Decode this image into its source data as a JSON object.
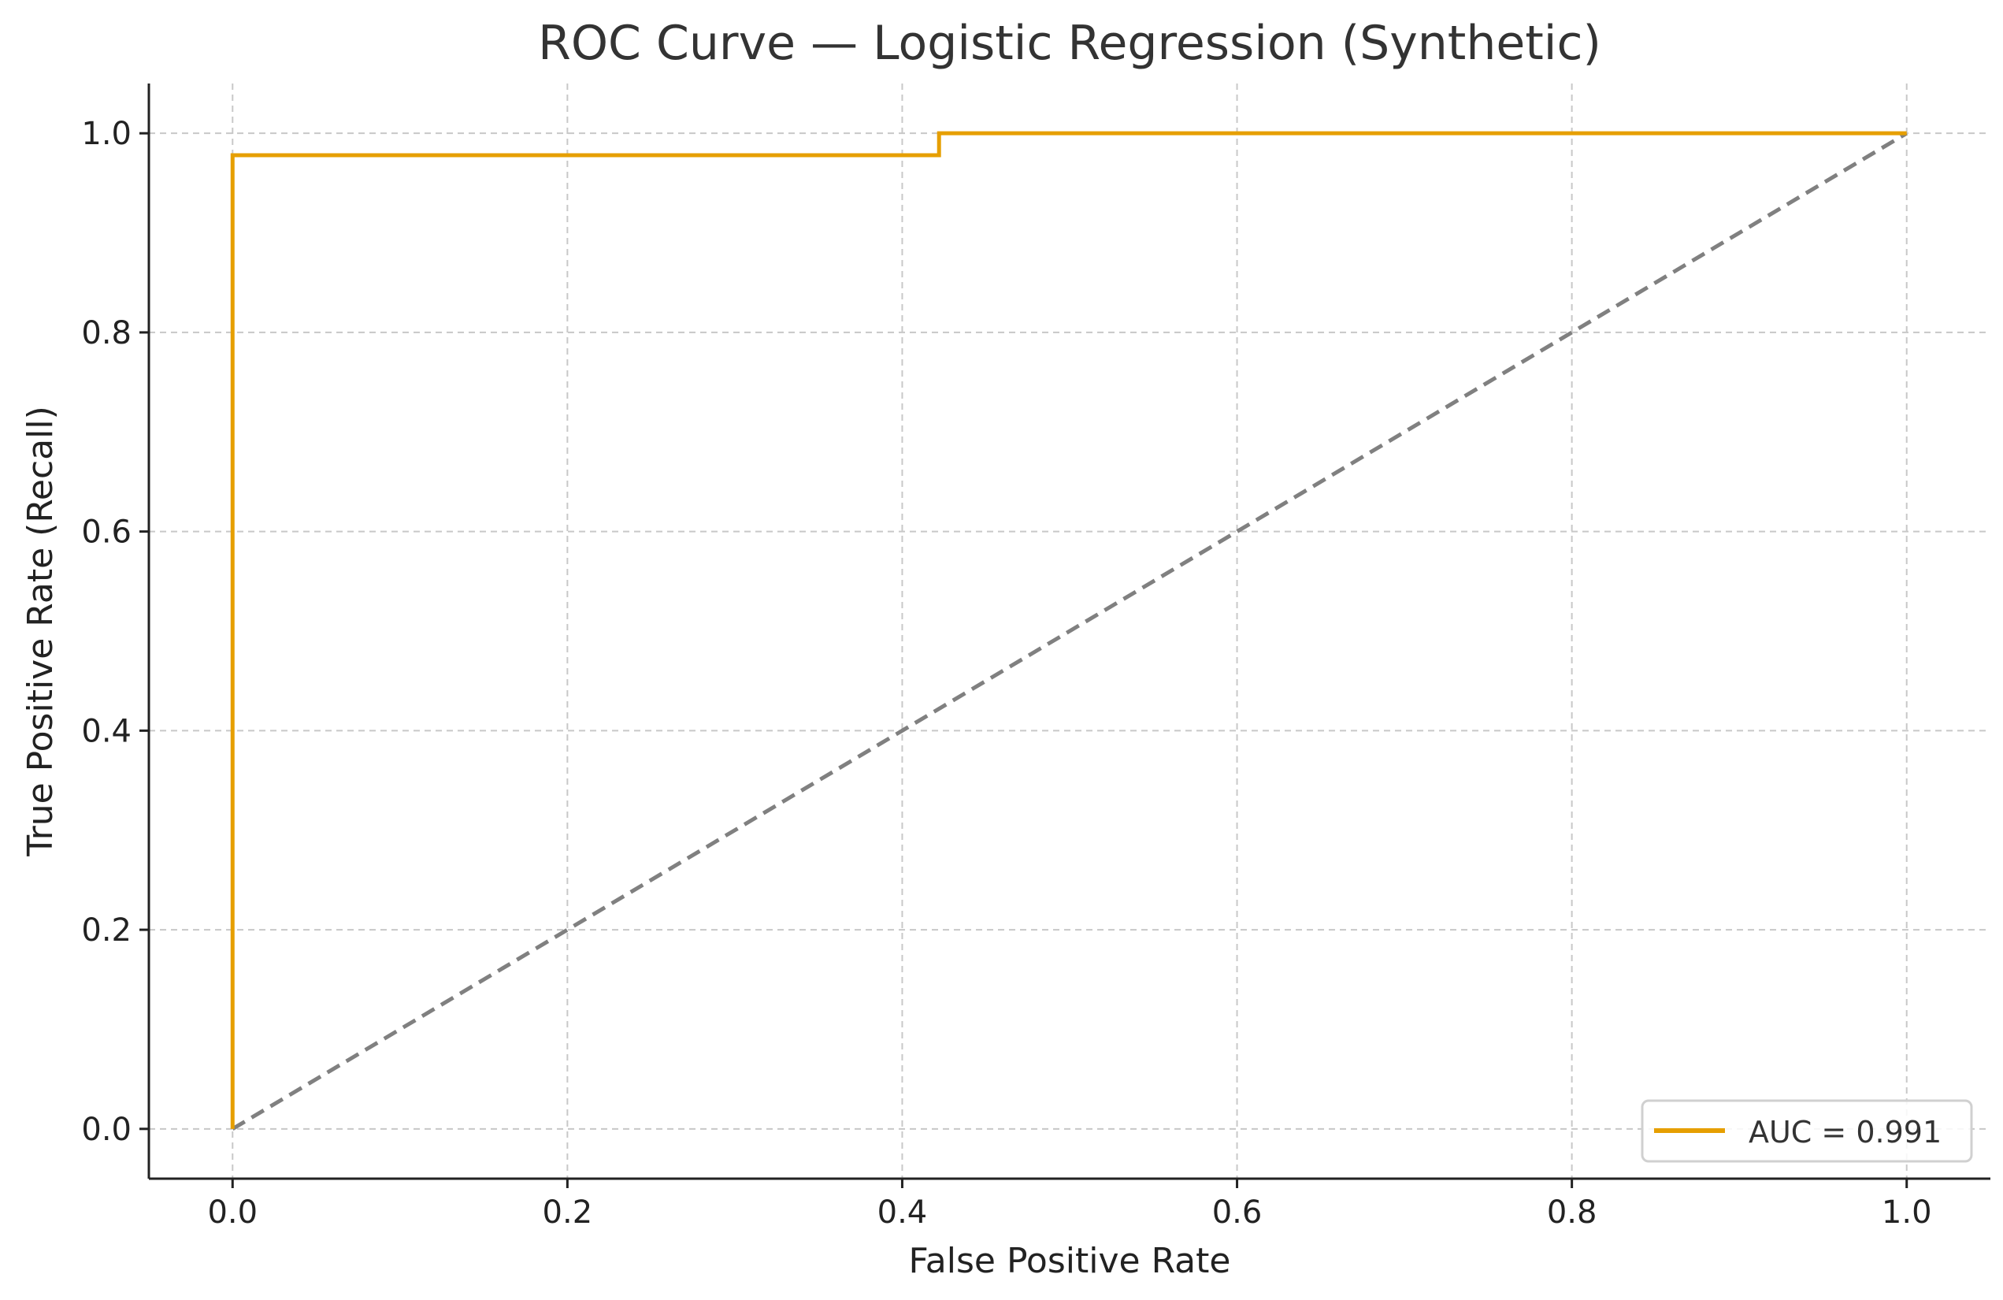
{
  "chart_data": {
    "type": "line",
    "title": "ROC Curve — Logistic Regression (Synthetic)",
    "xlabel": "False Positive Rate",
    "ylabel": "True Positive Rate (Recall)",
    "xlim": [
      -0.05,
      1.05
    ],
    "ylim": [
      -0.05,
      1.05
    ],
    "xticks": [
      "0.0",
      "0.2",
      "0.4",
      "0.6",
      "0.8",
      "1.0"
    ],
    "yticks": [
      "0.0",
      "0.2",
      "0.4",
      "0.6",
      "0.8",
      "1.0"
    ],
    "grid": true,
    "legend_position": "lower-right",
    "series": [
      {
        "name": "AUC = 0.991",
        "color": "#E69F00",
        "x": [
          0.0,
          0.0,
          0.422,
          0.422,
          1.0
        ],
        "y": [
          0.0,
          0.978,
          0.978,
          1.0,
          1.0
        ]
      },
      {
        "color": "#808080",
        "style": "dashed",
        "x": [
          0.0,
          1.0
        ],
        "y": [
          0.0,
          1.0
        ]
      }
    ]
  }
}
